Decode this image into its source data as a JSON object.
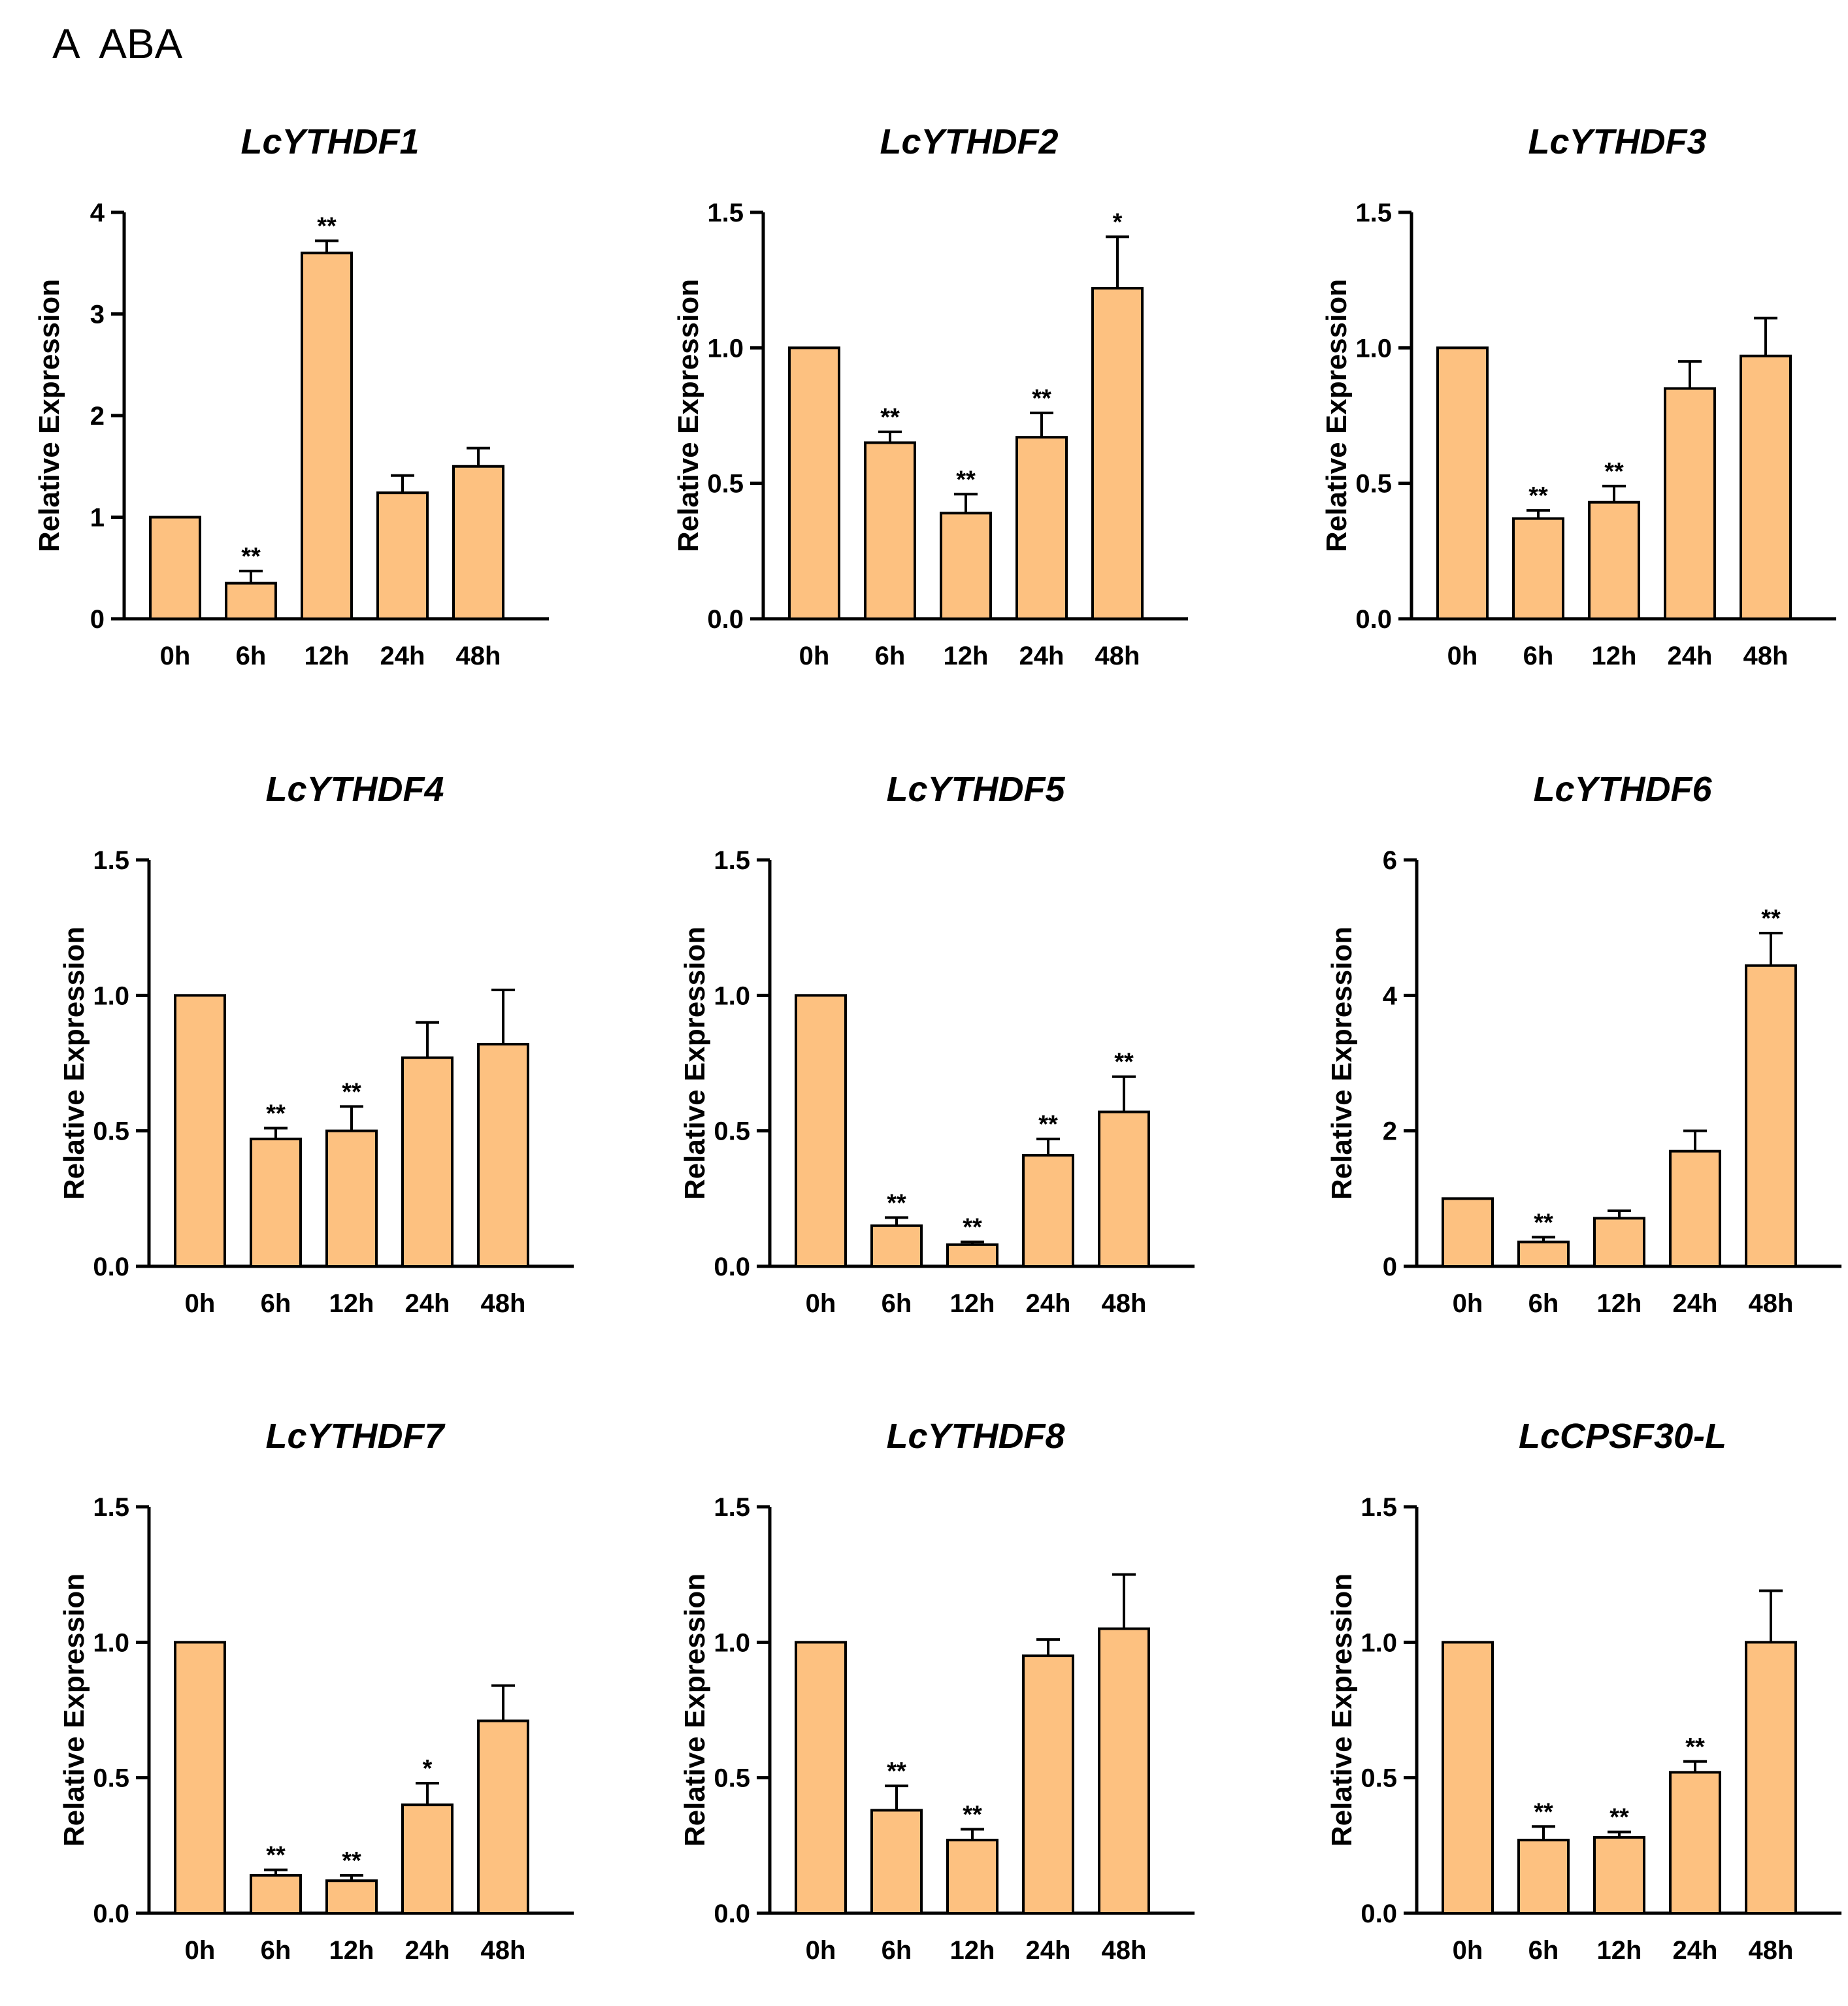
{
  "panel_label": "A  ABA",
  "colors": {
    "bar": "#FDC180",
    "stroke": "#000000"
  },
  "chart_data": [
    {
      "type": "bar",
      "title": "LcYTHDF1",
      "ylabel": "Relative Expression",
      "categories": [
        "0h",
        "6h",
        "12h",
        "24h",
        "48h"
      ],
      "values": [
        1.0,
        0.35,
        3.6,
        1.24,
        1.5
      ],
      "errors": [
        0,
        0.12,
        0.12,
        0.17,
        0.18
      ],
      "significance": [
        "",
        "**",
        "**",
        "",
        ""
      ],
      "ylim": [
        0,
        4
      ],
      "yticks": [
        "0",
        "1",
        "2",
        "3",
        "4"
      ]
    },
    {
      "type": "bar",
      "title": "LcYTHDF2",
      "ylabel": "Relative Expression",
      "categories": [
        "0h",
        "6h",
        "12h",
        "24h",
        "48h"
      ],
      "values": [
        1.0,
        0.65,
        0.39,
        0.67,
        1.22
      ],
      "errors": [
        0,
        0.04,
        0.07,
        0.09,
        0.19
      ],
      "significance": [
        "",
        "**",
        "**",
        "**",
        "*"
      ],
      "ylim": [
        0,
        1.5
      ],
      "yticks": [
        "0.0",
        "0.5",
        "1.0",
        "1.5"
      ]
    },
    {
      "type": "bar",
      "title": "LcYTHDF3",
      "ylabel": "Relative Expression",
      "categories": [
        "0h",
        "6h",
        "12h",
        "24h",
        "48h"
      ],
      "values": [
        1.0,
        0.37,
        0.43,
        0.85,
        0.97
      ],
      "errors": [
        0,
        0.03,
        0.06,
        0.1,
        0.14
      ],
      "significance": [
        "",
        "**",
        "**",
        "",
        ""
      ],
      "ylim": [
        0,
        1.5
      ],
      "yticks": [
        "0.0",
        "0.5",
        "1.0",
        "1.5"
      ]
    },
    {
      "type": "bar",
      "title": "LcYTHDF4",
      "ylabel": "Relative Expression",
      "categories": [
        "0h",
        "6h",
        "12h",
        "24h",
        "48h"
      ],
      "values": [
        1.0,
        0.47,
        0.5,
        0.77,
        0.82
      ],
      "errors": [
        0,
        0.04,
        0.09,
        0.13,
        0.2
      ],
      "significance": [
        "",
        "**",
        "**",
        "",
        ""
      ],
      "ylim": [
        0,
        1.5
      ],
      "yticks": [
        "0.0",
        "0.5",
        "1.0",
        "1.5"
      ]
    },
    {
      "type": "bar",
      "title": "LcYTHDF5",
      "ylabel": "Relative Expression",
      "categories": [
        "0h",
        "6h",
        "12h",
        "24h",
        "48h"
      ],
      "values": [
        1.0,
        0.15,
        0.08,
        0.41,
        0.57
      ],
      "errors": [
        0,
        0.03,
        0.01,
        0.06,
        0.13
      ],
      "significance": [
        "",
        "**",
        "**",
        "**",
        "**"
      ],
      "ylim": [
        0,
        1.5
      ],
      "yticks": [
        "0.0",
        "0.5",
        "1.0",
        "1.5"
      ]
    },
    {
      "type": "bar",
      "title": "LcYTHDF6",
      "ylabel": "Relative Expression",
      "categories": [
        "0h",
        "6h",
        "12h",
        "24h",
        "48h"
      ],
      "values": [
        1.0,
        0.36,
        0.71,
        1.7,
        4.44
      ],
      "errors": [
        0,
        0.07,
        0.11,
        0.3,
        0.48
      ],
      "significance": [
        "",
        "**",
        "",
        "",
        "**"
      ],
      "ylim": [
        0,
        6
      ],
      "yticks": [
        "0",
        "2",
        "4",
        "6"
      ]
    },
    {
      "type": "bar",
      "title": "LcYTHDF7",
      "ylabel": "Relative Expression",
      "categories": [
        "0h",
        "6h",
        "12h",
        "24h",
        "48h"
      ],
      "values": [
        1.0,
        0.14,
        0.12,
        0.4,
        0.71
      ],
      "errors": [
        0,
        0.02,
        0.02,
        0.08,
        0.13
      ],
      "significance": [
        "",
        "**",
        "**",
        "*",
        ""
      ],
      "ylim": [
        0,
        1.5
      ],
      "yticks": [
        "0.0",
        "0.5",
        "1.0",
        "1.5"
      ]
    },
    {
      "type": "bar",
      "title": "LcYTHDF8",
      "ylabel": "Relative Expression",
      "categories": [
        "0h",
        "6h",
        "12h",
        "24h",
        "48h"
      ],
      "values": [
        1.0,
        0.38,
        0.27,
        0.95,
        1.05
      ],
      "errors": [
        0,
        0.09,
        0.04,
        0.06,
        0.2
      ],
      "significance": [
        "",
        "**",
        "**",
        "",
        ""
      ],
      "ylim": [
        0,
        1.5
      ],
      "yticks": [
        "0.0",
        "0.5",
        "1.0",
        "1.5"
      ]
    },
    {
      "type": "bar",
      "title": "LcCPSF30-L",
      "ylabel": "Relative Expression",
      "categories": [
        "0h",
        "6h",
        "12h",
        "24h",
        "48h"
      ],
      "values": [
        1.0,
        0.27,
        0.28,
        0.52,
        1.0
      ],
      "errors": [
        0,
        0.05,
        0.02,
        0.04,
        0.19
      ],
      "significance": [
        "",
        "**",
        "**",
        "**",
        ""
      ],
      "ylim": [
        0,
        1.5
      ],
      "yticks": [
        "0.0",
        "0.5",
        "1.0",
        "1.5"
      ]
    }
  ]
}
